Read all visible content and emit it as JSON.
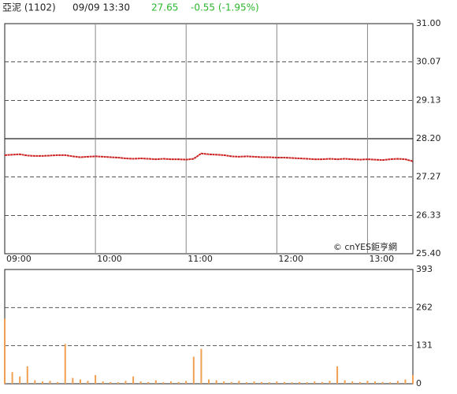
{
  "header": {
    "name": "亞泥 (1102)",
    "time": "09/09 13:30",
    "price": "27.65",
    "change": "-0.55 (-1.95%)"
  },
  "chart_data": [
    {
      "type": "line",
      "watermark": "© cnYES鉅亨網",
      "x": [
        "09:00",
        "09:05",
        "09:10",
        "09:15",
        "09:20",
        "09:25",
        "09:30",
        "09:35",
        "09:40",
        "09:45",
        "09:50",
        "09:55",
        "10:00",
        "10:05",
        "10:10",
        "10:15",
        "10:20",
        "10:25",
        "10:30",
        "10:35",
        "10:40",
        "10:45",
        "10:50",
        "10:55",
        "11:00",
        "11:05",
        "11:10",
        "11:15",
        "11:20",
        "11:25",
        "11:30",
        "11:35",
        "11:40",
        "11:45",
        "11:50",
        "11:55",
        "12:00",
        "12:05",
        "12:10",
        "12:15",
        "12:20",
        "12:25",
        "12:30",
        "12:35",
        "12:40",
        "12:45",
        "12:50",
        "12:55",
        "13:00",
        "13:05",
        "13:10",
        "13:15",
        "13:20",
        "13:25",
        "13:30"
      ],
      "series": [
        {
          "name": "price",
          "color": "#cc2222",
          "values": [
            27.8,
            27.81,
            27.82,
            27.79,
            27.78,
            27.78,
            27.79,
            27.8,
            27.8,
            27.77,
            27.75,
            27.76,
            27.77,
            27.76,
            27.75,
            27.74,
            27.72,
            27.71,
            27.72,
            27.71,
            27.7,
            27.71,
            27.7,
            27.7,
            27.69,
            27.71,
            27.84,
            27.82,
            27.81,
            27.8,
            27.77,
            27.76,
            27.77,
            27.76,
            27.75,
            27.75,
            27.74,
            27.74,
            27.73,
            27.72,
            27.71,
            27.7,
            27.7,
            27.71,
            27.7,
            27.71,
            27.7,
            27.69,
            27.7,
            27.69,
            27.68,
            27.7,
            27.71,
            27.7,
            27.65
          ]
        }
      ],
      "xticks": [
        "09:00",
        "10:00",
        "11:00",
        "12:00",
        "13:00"
      ],
      "ylim": [
        25.4,
        31
      ],
      "yticks": [
        {
          "value": 25.4,
          "label": "25.40"
        },
        26.33,
        27.27,
        {
          "value": 28.2,
          "label": "28.20"
        },
        29.13,
        30.07,
        {
          "value": 31,
          "label": "31.00"
        }
      ],
      "grid": true
    },
    {
      "type": "bar",
      "x": [
        "09:00",
        "09:05",
        "09:10",
        "09:15",
        "09:20",
        "09:25",
        "09:30",
        "09:35",
        "09:40",
        "09:45",
        "09:50",
        "09:55",
        "10:00",
        "10:05",
        "10:10",
        "10:15",
        "10:20",
        "10:25",
        "10:30",
        "10:35",
        "10:40",
        "10:45",
        "10:50",
        "10:55",
        "11:00",
        "11:05",
        "11:10",
        "11:15",
        "11:20",
        "11:25",
        "11:30",
        "11:35",
        "11:40",
        "11:45",
        "11:50",
        "11:55",
        "12:00",
        "12:05",
        "12:10",
        "12:15",
        "12:20",
        "12:25",
        "12:30",
        "12:35",
        "12:40",
        "12:45",
        "12:50",
        "12:55",
        "13:00",
        "13:05",
        "13:10",
        "13:15",
        "13:20",
        "13:25",
        "13:30"
      ],
      "values": [
        224,
        40,
        25,
        60,
        12,
        8,
        10,
        6,
        137,
        20,
        15,
        10,
        30,
        8,
        6,
        5,
        10,
        25,
        8,
        6,
        12,
        5,
        8,
        6,
        10,
        93,
        120,
        15,
        12,
        8,
        6,
        10,
        5,
        8,
        6,
        5,
        8,
        6,
        5,
        6,
        5,
        8,
        6,
        10,
        60,
        12,
        8,
        6,
        10,
        8,
        6,
        5,
        10,
        15,
        30
      ],
      "color": "#f0a050",
      "ylim": [
        0,
        393
      ],
      "yticks": [
        0,
        131,
        262,
        393
      ],
      "grid": true
    }
  ]
}
